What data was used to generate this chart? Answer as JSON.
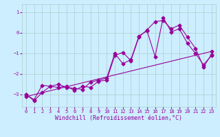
{
  "xlabel": "Windchill (Refroidissement éolien,°C)",
  "background_color": "#cceeff",
  "line_color": "#990099",
  "grid_color": "#aacccc",
  "xlim": [
    -0.5,
    23.5
  ],
  "ylim": [
    -3.6,
    1.4
  ],
  "yticks": [
    1,
    0,
    -1,
    -2,
    -3
  ],
  "xticks": [
    0,
    1,
    2,
    3,
    4,
    5,
    6,
    7,
    8,
    9,
    10,
    11,
    12,
    13,
    14,
    15,
    16,
    17,
    18,
    19,
    20,
    21,
    22,
    23
  ],
  "series1_x": [
    0,
    1,
    2,
    3,
    4,
    5,
    6,
    7,
    8,
    9,
    10,
    11,
    12,
    13,
    14,
    15,
    16,
    17,
    18,
    19,
    20,
    21,
    22,
    23
  ],
  "series1_y": [
    -3.0,
    -3.3,
    -2.9,
    -2.6,
    -2.5,
    -2.65,
    -2.7,
    -2.75,
    -2.4,
    -2.3,
    -2.2,
    -1.0,
    -1.5,
    -1.3,
    -0.15,
    0.1,
    -1.15,
    0.75,
    0.05,
    0.2,
    -0.5,
    -1.0,
    -1.55,
    -1.1
  ],
  "series2_x": [
    0,
    1,
    2,
    3,
    4,
    5,
    6,
    7,
    8,
    9,
    10,
    11,
    12,
    13,
    14,
    15,
    16,
    17,
    18,
    19,
    20,
    21,
    22,
    23
  ],
  "series2_y": [
    -3.0,
    -3.25,
    -2.55,
    -2.6,
    -2.65,
    -2.6,
    -2.8,
    -2.6,
    -2.65,
    -2.35,
    -2.3,
    -1.1,
    -0.95,
    -1.35,
    -0.2,
    0.15,
    0.55,
    0.6,
    0.2,
    0.38,
    -0.2,
    -0.75,
    -1.65,
    -1.05
  ],
  "series3_x": [
    0,
    23
  ],
  "series3_y": [
    -3.1,
    -0.9
  ],
  "markersize": 2.5,
  "linewidth": 0.8,
  "tick_fontsize": 5,
  "xlabel_fontsize": 6
}
